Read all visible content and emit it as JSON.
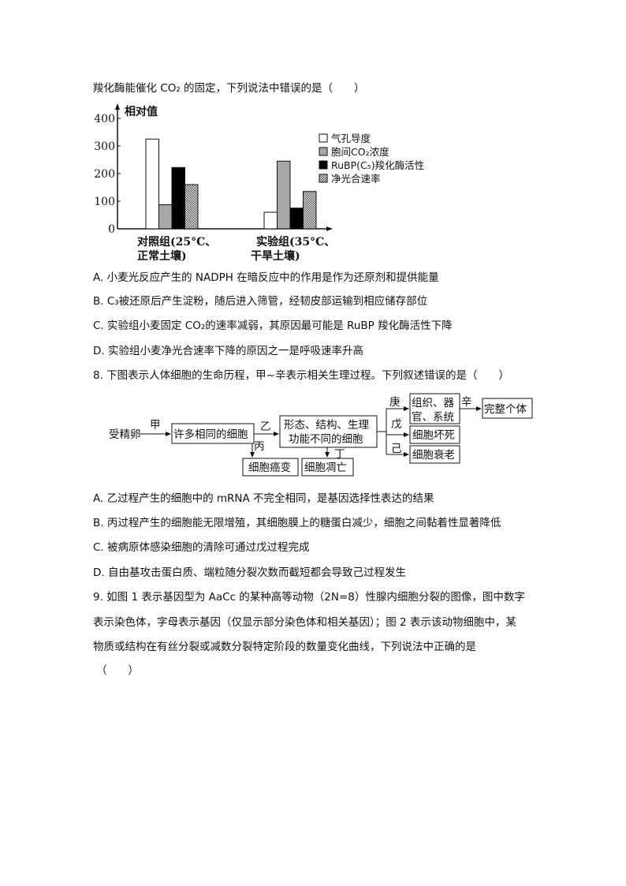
{
  "q7": {
    "stem_tail": "羧化酶能催化 CO₂ 的固定，下列说法中错误的是（　　）",
    "options": [
      "A.  小麦光反应产生的 NADPH 在暗反应中的作用是作为还原剂和提供能量",
      "B. C₃被还原后产生淀粉，随后进入筛管，经韧皮部运输到相应储存部位",
      "C.  实验组小麦固定 CO₂的速率减弱，其原因最可能是 RuBP 羧化酶活性下降",
      "D.  实验组小麦净光合速率下降的原因之一是呼吸速率升高"
    ]
  },
  "chart_data": {
    "type": "bar",
    "title": "",
    "ylabel": "相对值",
    "xlabel": "",
    "ylim": [
      0,
      400
    ],
    "yticks": [
      "0",
      "100",
      "200",
      "300",
      "400"
    ],
    "categories": [
      [
        "对照组(25°C、",
        "正常土壤)"
      ],
      [
        "实验组(35°C、",
        "干旱土壤)"
      ]
    ],
    "legend_position": "right",
    "series": [
      {
        "name": "气孔导度",
        "values": [
          325,
          60
        ],
        "fill": "#ffffff"
      },
      {
        "name": "胞间CO₂浓度",
        "values": [
          87,
          245
        ],
        "fill": "#a8a8a8"
      },
      {
        "name": "RuBP(C₅)羧化酶活性",
        "values": [
          222,
          75
        ],
        "fill": "#000000"
      },
      {
        "name": "净光合速率",
        "values": [
          160,
          135
        ],
        "fill": "pattern"
      }
    ]
  },
  "q8": {
    "stem": "8.  下图表示人体细胞的生命历程，甲~辛表示相关生理过程。下列叙述错误的是（　　）",
    "diagram": {
      "start": "受精卵",
      "box_same": "许多相同的细胞",
      "box_diff": [
        "形态、结构、生理",
        "功能不同的细胞"
      ],
      "box_cancer": "细胞癌变",
      "box_apoptosis": "细胞凋亡",
      "box_tissue": [
        "组织、器",
        "官、系统"
      ],
      "box_individual": "完整个体",
      "box_necrosis": "细胞坏死",
      "box_aging": "细胞衰老",
      "labels": {
        "jia": "甲",
        "yi": "乙",
        "bing": "丙",
        "ding": "丁",
        "wu": "戊",
        "ji": "己",
        "geng": "庚",
        "xin": "辛"
      }
    },
    "options": [
      "A.  乙过程产生的细胞中的 mRNA 不完全相同，是基因选择性表达的结果",
      "B.  丙过程产生的细胞能无限增殖，其细胞膜上的糖蛋白减少，细胞之间黏着性显著降低",
      "C.  被病原体感染细胞的清除可通过戊过程完成",
      "D.  自由基攻击蛋白质、端粒随分裂次数而截短都会导致己过程发生"
    ]
  },
  "q9": {
    "lines": [
      "9.  如图 1 表示基因型为 AaCc 的某种高等动物（2N=8）性腺内细胞分裂的图像，图中数字",
      "表示染色体，字母表示基因（仅显示部分染色体和相关基因）；图 2 表示该动物细胞中，某",
      "物质或结构在有丝分裂或减数分裂特定阶段的数量变化曲线，下列说法中正确的是",
      "（　　）"
    ]
  }
}
